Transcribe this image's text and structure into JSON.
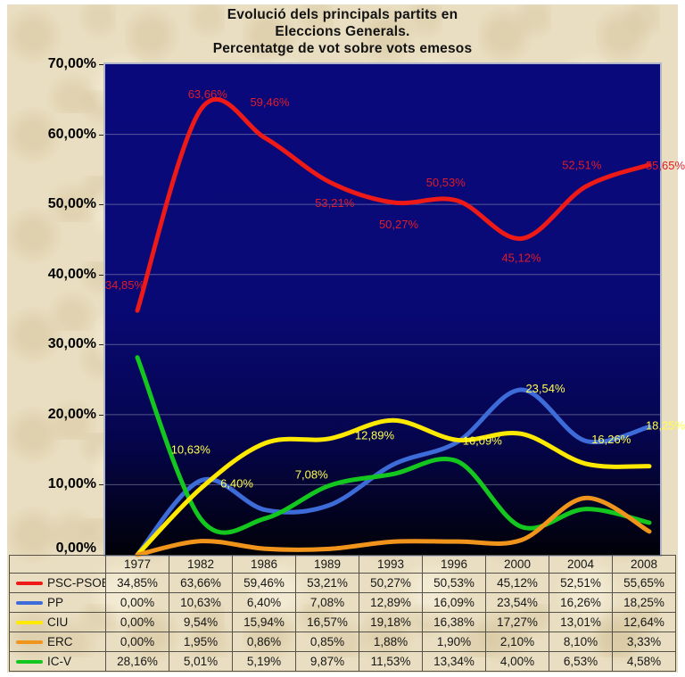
{
  "title": {
    "line1": "Evolució dels principals partits en",
    "line2": "Eleccions Generals.",
    "line3": "Percentatge de vot sobre vots emesos"
  },
  "y_axis": {
    "ticks": [
      "70,00%",
      "60,00%",
      "50,00%",
      "40,00%",
      "30,00%",
      "20,00%",
      "10,00%",
      "0,00%"
    ]
  },
  "chart_data": {
    "type": "line",
    "title": "Evolució dels principals partits en Eleccions Generals. Percentatge de vot sobre vots emesos",
    "categories": [
      "1977",
      "1982",
      "1986",
      "1989",
      "1993",
      "1996",
      "2000",
      "2004",
      "2008"
    ],
    "ylim": [
      0,
      70
    ],
    "ytick_step": 10,
    "grid": "horizontal",
    "legend_position": "table-left-column",
    "plot_background": "navy-to-black vertical gradient",
    "series": [
      {
        "name": "PSC-PSOE",
        "color": "#ed1a17",
        "values": [
          34.85,
          63.66,
          59.46,
          53.21,
          50.27,
          50.53,
          45.12,
          52.51,
          55.65
        ],
        "point_labels": [
          "34,85%",
          "63,66%",
          "59,46%",
          "53,21%",
          "50,27%",
          "50,53%",
          "45,12%",
          "52,51%",
          "55,65%"
        ],
        "label_color": "#e21b28"
      },
      {
        "name": "PP",
        "color": "#3d6bd8",
        "values": [
          0,
          10.63,
          6.4,
          7.08,
          12.89,
          16.09,
          23.54,
          16.26,
          18.25
        ],
        "point_labels": [
          null,
          "10,63%",
          "6,40%",
          "7,08%",
          "12,89%",
          "16,09%",
          "23,54%",
          "16,26%",
          "18,25%"
        ],
        "label_color": "#ffff4d"
      },
      {
        "name": "CIU",
        "color": "#ffe900",
        "values": [
          0,
          9.54,
          15.94,
          16.57,
          19.18,
          16.38,
          17.27,
          13.01,
          12.64
        ],
        "point_labels": [],
        "label_color": null
      },
      {
        "name": "ERC",
        "color": "#f0941c",
        "values": [
          0,
          1.95,
          0.86,
          0.85,
          1.88,
          1.9,
          2.1,
          8.1,
          3.33
        ],
        "point_labels": [],
        "label_color": null
      },
      {
        "name": "IC-V",
        "color": "#14c71f",
        "values": [
          28.16,
          5.01,
          5.19,
          9.87,
          11.53,
          13.34,
          4.0,
          6.53,
          4.58
        ],
        "point_labels": [],
        "label_color": null
      }
    ]
  },
  "table": {
    "corner": "",
    "years": [
      "1977",
      "1982",
      "1986",
      "1989",
      "1993",
      "1996",
      "2000",
      "2004",
      "2008"
    ],
    "rows": [
      {
        "name": "PSC-PSOE",
        "color": "#ed1a17",
        "values": [
          "34,85%",
          "63,66%",
          "59,46%",
          "53,21%",
          "50,27%",
          "50,53%",
          "45,12%",
          "52,51%",
          "55,65%"
        ]
      },
      {
        "name": "PP",
        "color": "#3d6bd8",
        "values": [
          "0,00%",
          "10,63%",
          "6,40%",
          "7,08%",
          "12,89%",
          "16,09%",
          "23,54%",
          "16,26%",
          "18,25%"
        ]
      },
      {
        "name": "CIU",
        "color": "#ffe900",
        "values": [
          "0,00%",
          "9,54%",
          "15,94%",
          "16,57%",
          "19,18%",
          "16,38%",
          "17,27%",
          "13,01%",
          "12,64%"
        ]
      },
      {
        "name": "ERC",
        "color": "#f0941c",
        "values": [
          "0,00%",
          "1,95%",
          "0,86%",
          "0,85%",
          "1,88%",
          "1,90%",
          "2,10%",
          "8,10%",
          "3,33%"
        ]
      },
      {
        "name": "IC-V",
        "color": "#14c71f",
        "values": [
          "28,16%",
          "5,01%",
          "5,19%",
          "9,87%",
          "11,53%",
          "13,34%",
          "4,00%",
          "6,53%",
          "4,58%"
        ]
      }
    ]
  }
}
